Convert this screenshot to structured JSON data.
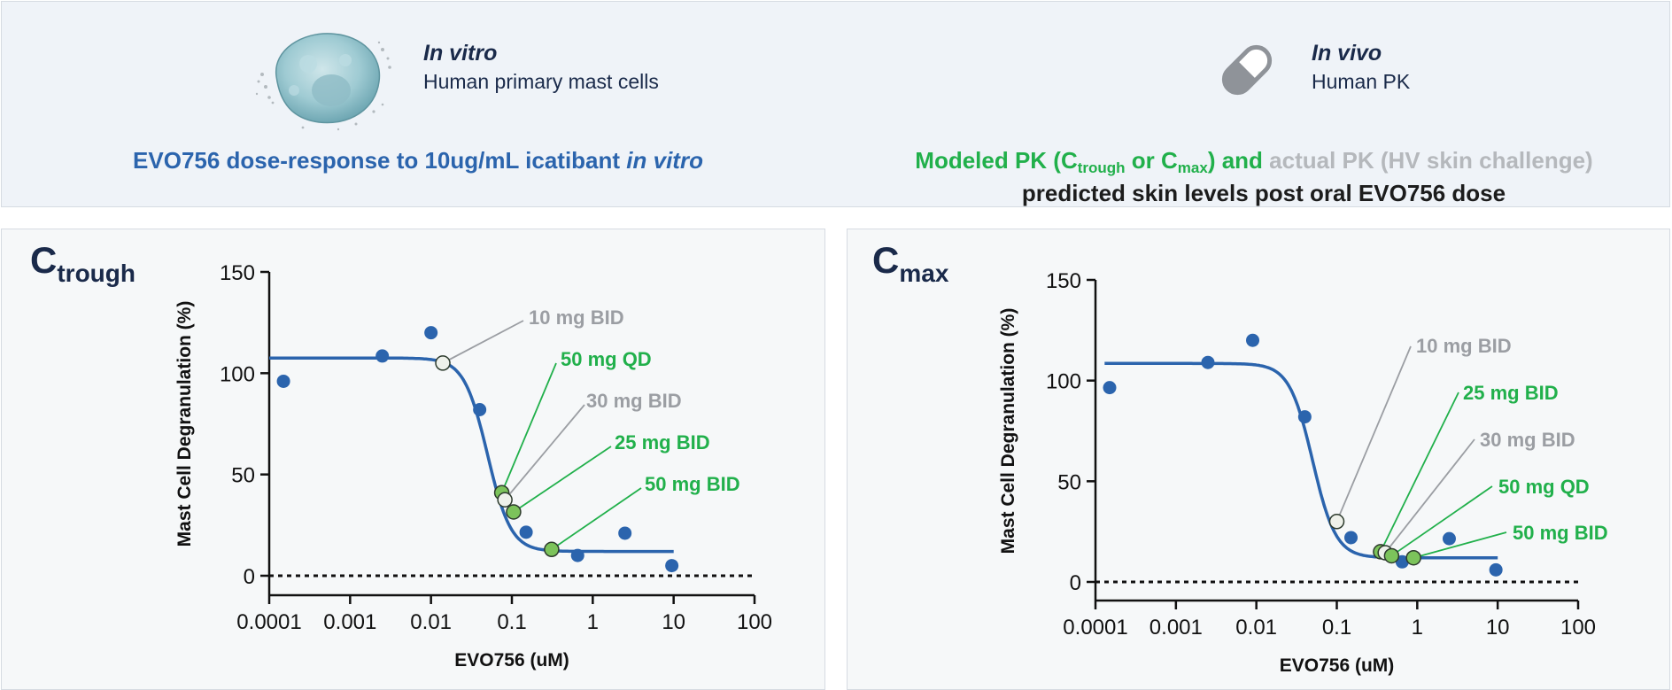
{
  "header": {
    "in_vitro": {
      "title": "In vitro",
      "subtitle": "Human primary mast cells"
    },
    "in_vivo": {
      "title": "In vivo",
      "subtitle": "Human PK"
    },
    "left_caption": {
      "text": "EVO756 dose-response to 10ug/mL icatibant ",
      "italic": "in vitro"
    },
    "right_caption": {
      "green_1": "Modeled PK (C",
      "sub_trough": "trough",
      "green_2": " or C",
      "sub_max": "max",
      "green_3": ") and",
      "grey_1": " actual PK (HV skin challenge)",
      "line2": "predicted skin levels post oral EVO756 dose"
    }
  },
  "colors": {
    "blue": "#2b64ad",
    "green": "#21b04b",
    "grey": "#9b9ea3",
    "navy": "#1a2a4a",
    "marker_green": "#7cc35b",
    "marker_grey": "#eef1ea"
  },
  "chart_data": [
    {
      "type": "scatter",
      "id": "trough",
      "panel_label": {
        "main": "C",
        "sub": "trough"
      },
      "xlabel": "EVO756 (uM)",
      "ylabel": "Mast Cell Degranulation (%)",
      "xscale": "log",
      "xlim": [
        0.0001,
        100
      ],
      "ylim": [
        0,
        150
      ],
      "xticks": [
        "0.0001",
        "0.001",
        "0.01",
        "0.1",
        "1",
        "10",
        "100"
      ],
      "yticks": [
        "0",
        "50",
        "100",
        "150"
      ],
      "baseline_y": 0,
      "fit": {
        "top": 107.5,
        "bottom": 12,
        "ic50": 0.05,
        "hill": 3.0,
        "x_start": 0.0001,
        "x_end": 10
      },
      "observed": [
        {
          "x": 0.00015,
          "y": 96
        },
        {
          "x": 0.0025,
          "y": 108.5
        },
        {
          "x": 0.01,
          "y": 120
        },
        {
          "x": 0.04,
          "y": 82
        },
        {
          "x": 0.15,
          "y": 21.5
        },
        {
          "x": 0.65,
          "y": 10
        },
        {
          "x": 2.5,
          "y": 21
        },
        {
          "x": 9.5,
          "y": 5
        }
      ],
      "doses": [
        {
          "label": "10 mg BID",
          "kind": "actual",
          "x": 0.014,
          "y": 105
        },
        {
          "label": "50 mg QD",
          "kind": "modeled",
          "x": 0.075,
          "y": 41
        },
        {
          "label": "30 mg BID",
          "kind": "actual",
          "x": 0.082,
          "y": 37.5
        },
        {
          "label": "25 mg BID",
          "kind": "modeled",
          "x": 0.105,
          "y": 31.5
        },
        {
          "label": "50 mg BID",
          "kind": "modeled",
          "x": 0.31,
          "y": 13
        }
      ]
    },
    {
      "type": "scatter",
      "id": "max",
      "panel_label": {
        "main": "C",
        "sub": "max"
      },
      "xlabel": "EVO756 (uM)",
      "ylabel": "Mast Cell Degranulation (%)",
      "xscale": "log",
      "xlim": [
        0.0001,
        100
      ],
      "ylim": [
        0,
        150
      ],
      "xticks": [
        "0.0001",
        "0.001",
        "0.01",
        "0.1",
        "1",
        "10",
        "100"
      ],
      "yticks": [
        "0",
        "50",
        "100",
        "150"
      ],
      "baseline_y": 0,
      "fit": {
        "top": 108.5,
        "bottom": 12,
        "ic50": 0.05,
        "hill": 3.0,
        "x_start": 0.00013,
        "x_end": 10
      },
      "observed": [
        {
          "x": 0.00015,
          "y": 96.5
        },
        {
          "x": 0.0025,
          "y": 109
        },
        {
          "x": 0.009,
          "y": 120
        },
        {
          "x": 0.04,
          "y": 82
        },
        {
          "x": 0.15,
          "y": 22
        },
        {
          "x": 0.65,
          "y": 10
        },
        {
          "x": 2.5,
          "y": 21.5
        },
        {
          "x": 9.5,
          "y": 6
        }
      ],
      "doses": [
        {
          "label": "10 mg BID",
          "kind": "actual",
          "x": 0.1,
          "y": 30
        },
        {
          "label": "25 mg BID",
          "kind": "modeled",
          "x": 0.35,
          "y": 15
        },
        {
          "label": "30 mg BID",
          "kind": "actual",
          "x": 0.4,
          "y": 14.5
        },
        {
          "label": "50 mg QD",
          "kind": "modeled",
          "x": 0.48,
          "y": 13
        },
        {
          "label": "50 mg BID",
          "kind": "modeled",
          "x": 0.9,
          "y": 12
        }
      ]
    }
  ]
}
